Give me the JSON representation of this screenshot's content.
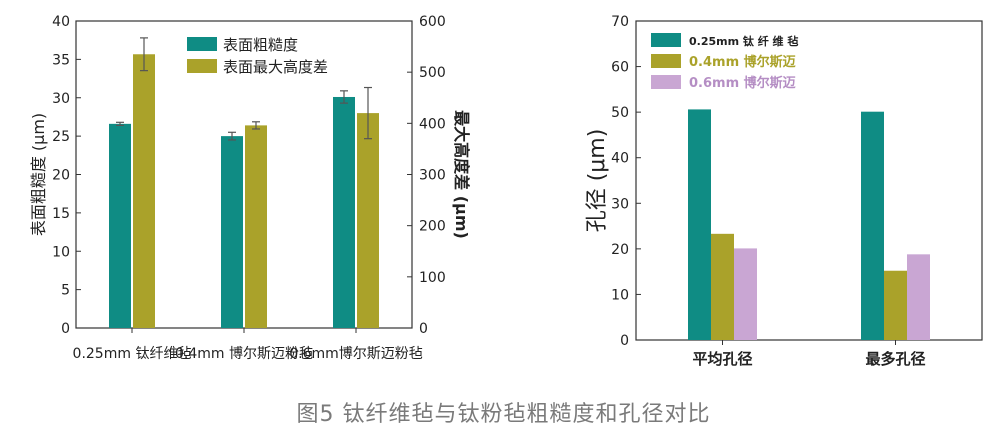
{
  "figure": {
    "caption": "图5  钛纤维毡与钛粉毡粗糙度和孔径对比"
  },
  "colors": {
    "teal": "#0f8c84",
    "olive": "#aaa22a",
    "lilac": "#c9a6d3",
    "axis": "#333333",
    "err": "#555555"
  },
  "chart_data": [
    {
      "type": "bar",
      "title": "",
      "categories": [
        "0.25mm 钛纤维毡",
        "0.4mm 博尔斯迈粉毡",
        "0.6mm博尔斯迈粉毡"
      ],
      "ylabel": "表面粗糙度 (μm)",
      "ylim": [
        0,
        40
      ],
      "yticks": [
        0,
        5,
        10,
        15,
        20,
        25,
        30,
        35,
        40
      ],
      "y2label": "最大高度差 (μm)",
      "y2lim": [
        0,
        600
      ],
      "y2ticks": [
        0,
        100,
        200,
        300,
        400,
        500,
        600
      ],
      "legend": "top-center",
      "series": [
        {
          "name": "表面粗糙度",
          "axis": "left",
          "color": "teal",
          "values": [
            26.6,
            25.0,
            30.1
          ],
          "errors": [
            0.2,
            0.5,
            0.8
          ]
        },
        {
          "name": "表面最大高度差",
          "axis": "right",
          "color": "olive",
          "values": [
            535,
            396,
            420
          ],
          "errors": [
            32,
            7,
            50
          ]
        }
      ]
    },
    {
      "type": "bar",
      "title": "",
      "categories": [
        "平均孔径",
        "最多孔径"
      ],
      "ylabel": "孔径 (μm)",
      "ylim": [
        0,
        70
      ],
      "yticks": [
        0,
        10,
        20,
        30,
        40,
        50,
        60,
        70
      ],
      "legend": "top-left",
      "series": [
        {
          "name": "0.25mm 钛 纤 维 毡",
          "color": "teal",
          "values": [
            50.6,
            50.1
          ]
        },
        {
          "name": "0.4mm 博尔斯迈",
          "color": "olive",
          "values": [
            23.3,
            15.2
          ]
        },
        {
          "name": "0.6mm 博尔斯迈",
          "color": "lilac",
          "values": [
            20.1,
            18.8
          ]
        }
      ]
    }
  ]
}
